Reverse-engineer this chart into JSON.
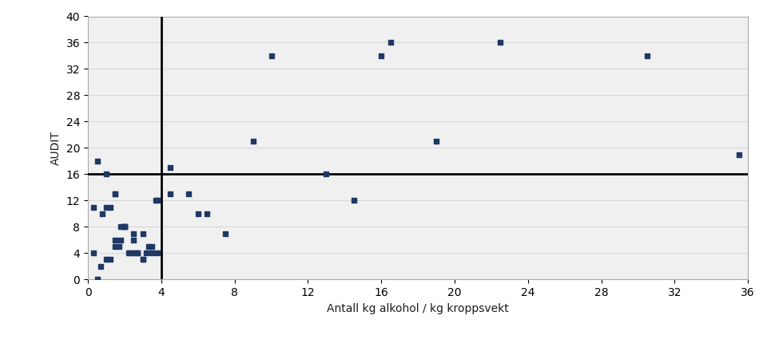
{
  "xlabel": "Antall kg alkohol / kg kroppsvekt",
  "ylabel": "AUDIT",
  "xlim": [
    0,
    36
  ],
  "ylim": [
    0,
    40
  ],
  "xticks": [
    0,
    4,
    8,
    12,
    16,
    20,
    24,
    28,
    32,
    36
  ],
  "yticks": [
    0,
    4,
    8,
    12,
    16,
    20,
    24,
    28,
    32,
    36,
    40
  ],
  "hline": 16,
  "vline": 4,
  "marker_color": "#1F3864",
  "marker_size": 5,
  "background_color": "#ffffff",
  "scatter_x": [
    0.3,
    0.5,
    0.7,
    1.0,
    1.2,
    1.5,
    1.5,
    1.7,
    1.8,
    2.0,
    2.0,
    2.2,
    2.3,
    2.5,
    2.5,
    2.7,
    2.7,
    3.0,
    3.0,
    3.2,
    3.3,
    3.5,
    3.5,
    3.7,
    3.8,
    3.8,
    1.0,
    1.5,
    1.5,
    0.5,
    1.0,
    0.3,
    0.8,
    1.2,
    1.8,
    2.0,
    2.5,
    3.0,
    4.5,
    4.5,
    5.5,
    6.0,
    6.5,
    7.5,
    9.0,
    10.0,
    13.0,
    14.5,
    16.0,
    16.5,
    19.0,
    22.5,
    30.5,
    35.5
  ],
  "scatter_y": [
    4,
    0,
    2,
    3,
    3,
    5,
    6,
    5,
    6,
    8,
    8,
    4,
    4,
    4,
    6,
    4,
    4,
    3,
    3,
    4,
    5,
    4,
    5,
    12,
    12,
    4,
    16,
    13,
    13,
    18,
    11,
    11,
    10,
    11,
    8,
    8,
    7,
    7,
    13,
    17,
    13,
    10,
    10,
    7,
    21,
    34,
    16,
    12,
    34,
    36,
    21,
    36,
    34,
    19
  ],
  "text_color": "#1a1a1a",
  "title_fontsize": 11,
  "axis_fontsize": 10,
  "tick_fontsize": 10
}
